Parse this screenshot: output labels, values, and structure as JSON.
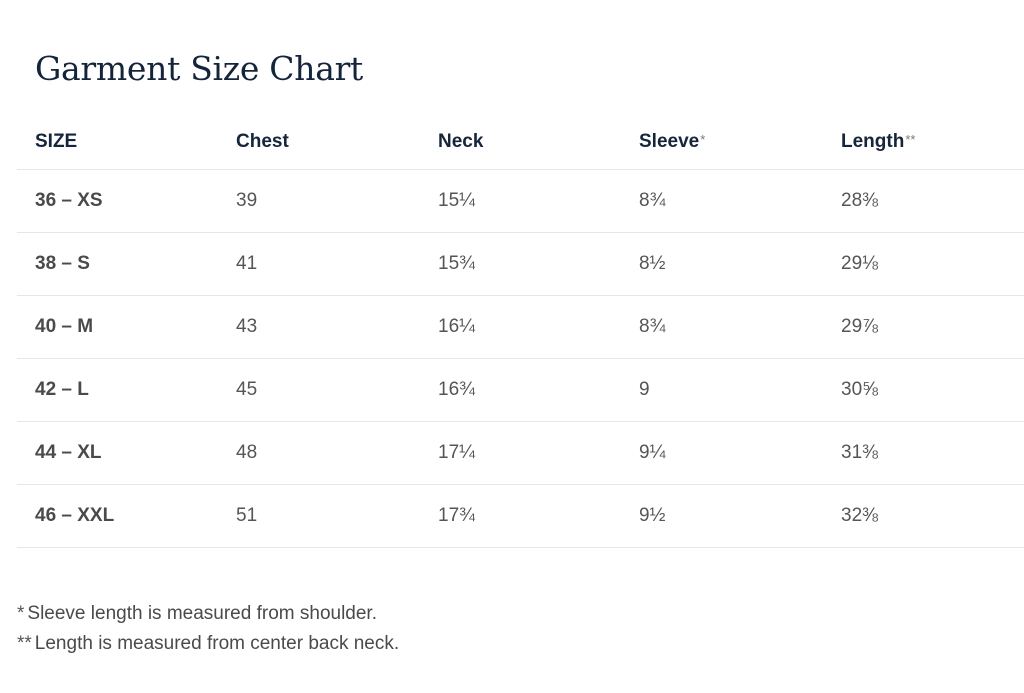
{
  "title": "Garment Size Chart",
  "columns": [
    {
      "label": "SIZE",
      "mark": ""
    },
    {
      "label": "Chest",
      "mark": ""
    },
    {
      "label": "Neck",
      "mark": ""
    },
    {
      "label": "Sleeve",
      "mark": "*"
    },
    {
      "label": "Length",
      "mark": "**"
    }
  ],
  "rows": [
    {
      "size": "36 – XS",
      "chest": "39",
      "neck": "15¼",
      "sleeve": "8¾",
      "length": "28⅜"
    },
    {
      "size": "38 – S",
      "chest": "41",
      "neck": "15¾",
      "sleeve": "8½",
      "length": "29⅛"
    },
    {
      "size": "40 – M",
      "chest": "43",
      "neck": "16¼",
      "sleeve": "8¾",
      "length": "29⅞"
    },
    {
      "size": "42 – L",
      "chest": "45",
      "neck": "16¾",
      "sleeve": "9",
      "length": "30⅝"
    },
    {
      "size": "44 – XL",
      "chest": "48",
      "neck": "17¼",
      "sleeve": "9¼",
      "length": "31⅜"
    },
    {
      "size": "46 – XXL",
      "chest": "51",
      "neck": "17¾",
      "sleeve": "9½",
      "length": "32⅜"
    }
  ],
  "footnotes": [
    {
      "mark": "*",
      "text": "Sleeve length is measured from shoulder."
    },
    {
      "mark": "**",
      "text": "Length is measured from center back neck."
    }
  ],
  "colors": {
    "heading": "#14243a",
    "header_text": "#15253b",
    "body_text": "#555555",
    "divider": "#e6e6e6"
  }
}
